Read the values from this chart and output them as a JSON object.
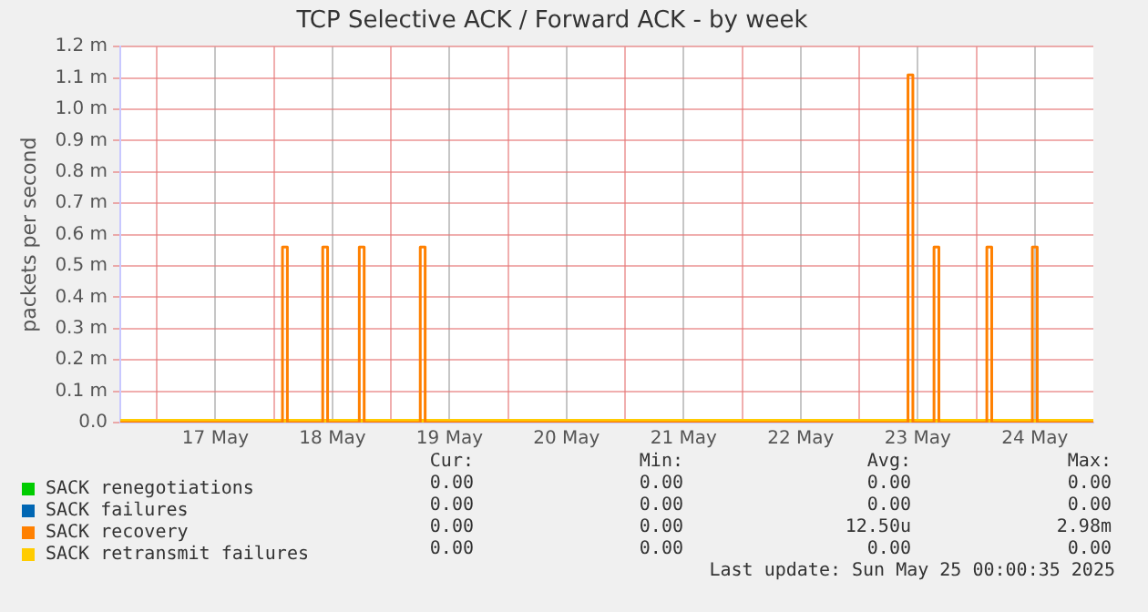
{
  "chart_data": {
    "type": "line",
    "title": "TCP Selective ACK / Forward ACK - by week",
    "ylabel": "packets per second",
    "xlim": [
      "2025-05-16T16:30",
      "2025-05-25T00:00"
    ],
    "xticks": [
      {
        "value": "2025-05-17T00:00",
        "label": null
      },
      {
        "value": "2025-05-17T12:00",
        "label": "17 May"
      },
      {
        "value": "2025-05-18T00:00",
        "label": null
      },
      {
        "value": "2025-05-18T12:00",
        "label": "18 May"
      },
      {
        "value": "2025-05-19T00:00",
        "label": null
      },
      {
        "value": "2025-05-19T12:00",
        "label": "19 May"
      },
      {
        "value": "2025-05-20T00:00",
        "label": null
      },
      {
        "value": "2025-05-20T12:00",
        "label": "20 May"
      },
      {
        "value": "2025-05-21T00:00",
        "label": null
      },
      {
        "value": "2025-05-21T12:00",
        "label": "21 May"
      },
      {
        "value": "2025-05-22T00:00",
        "label": null
      },
      {
        "value": "2025-05-22T12:00",
        "label": "22 May"
      },
      {
        "value": "2025-05-23T00:00",
        "label": null
      },
      {
        "value": "2025-05-23T12:00",
        "label": "23 May"
      },
      {
        "value": "2025-05-24T00:00",
        "label": null
      },
      {
        "value": "2025-05-24T12:00",
        "label": "24 May"
      }
    ],
    "ylim": [
      0,
      1.2
    ],
    "yticks": [
      {
        "value": 0,
        "label": "0.0"
      },
      {
        "value": 0.1,
        "label": "0.1 m"
      },
      {
        "value": 0.2,
        "label": "0.2 m"
      },
      {
        "value": 0.3,
        "label": "0.3 m"
      },
      {
        "value": 0.4,
        "label": "0.4 m"
      },
      {
        "value": 0.5,
        "label": "0.5 m"
      },
      {
        "value": 0.6,
        "label": "0.6 m"
      },
      {
        "value": 0.7,
        "label": "0.7 m"
      },
      {
        "value": 0.8,
        "label": "0.8 m"
      },
      {
        "value": 0.9,
        "label": "0.9 m"
      },
      {
        "value": 1.0,
        "label": "1.0 m"
      },
      {
        "value": 1.1,
        "label": "1.1 m"
      },
      {
        "value": 1.2,
        "label": "1.2 m"
      }
    ],
    "grid": true,
    "legend": "bottom",
    "marker": "none",
    "series": [
      {
        "name": "SACK renegotiations",
        "color": "#00cc00"
      },
      {
        "name": "SACK failures",
        "color": "#0066b3"
      },
      {
        "name": "SACK recovery",
        "color": "#ff8000",
        "x": [
          "2025-05-16T16:30",
          "2025-05-18T01:45",
          "2025-05-18T01:45",
          "2025-05-18T02:45",
          "2025-05-18T02:45",
          "2025-05-18T10:00",
          "2025-05-18T10:00",
          "2025-05-18T11:00",
          "2025-05-18T11:00",
          "2025-05-18T17:30",
          "2025-05-18T17:30",
          "2025-05-18T18:30",
          "2025-05-18T18:30",
          "2025-05-19T06:00",
          "2025-05-19T06:00",
          "2025-05-19T07:00",
          "2025-05-19T07:00",
          "2025-05-23T10:00",
          "2025-05-23T10:00",
          "2025-05-23T11:00",
          "2025-05-23T11:00",
          "2025-05-23T15:20",
          "2025-05-23T15:20",
          "2025-05-23T16:20",
          "2025-05-23T16:20",
          "2025-05-24T02:10",
          "2025-05-24T02:10",
          "2025-05-24T03:10",
          "2025-05-24T03:10",
          "2025-05-24T11:30",
          "2025-05-24T11:30",
          "2025-05-24T12:30",
          "2025-05-24T12:30",
          "2025-05-25T00:00"
        ],
        "values": [
          0,
          0,
          0.56,
          0.56,
          0,
          0,
          0.56,
          0.56,
          0,
          0,
          0.56,
          0.56,
          0,
          0,
          0.56,
          0.56,
          0,
          0,
          1.11,
          1.11,
          0,
          0,
          0.56,
          0.56,
          0,
          0,
          0.56,
          0.56,
          0,
          0,
          0.56,
          0.56,
          0,
          0
        ]
      },
      {
        "name": "SACK retransmit failures",
        "color": "#ffcc00",
        "x": [
          "2025-05-16T16:30",
          "2025-05-25T00:00"
        ],
        "values": [
          0,
          0
        ]
      }
    ],
    "annotations": [
      "Cur:",
      "Min:",
      "Avg:",
      "Max:",
      "0.00",
      "0.00",
      "0.00",
      "0.00",
      "0.00",
      "0.00",
      "0.00",
      "0.00",
      "0.00",
      "0.00",
      "12.50u",
      "2.98m",
      "0.00",
      "0.00",
      "0.00",
      "0.00",
      "Last update: Sun May 25 00:00:35 2025"
    ]
  }
}
